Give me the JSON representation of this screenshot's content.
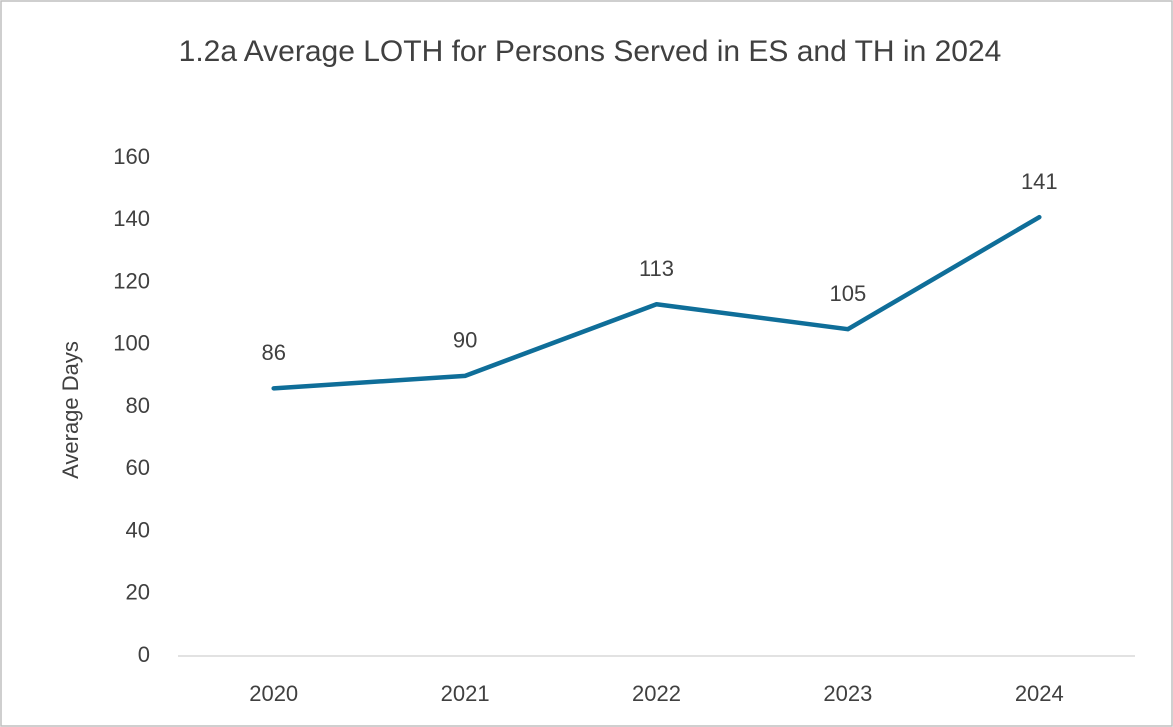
{
  "chart_data": {
    "type": "line",
    "title": "1.2a Average LOTH for Persons Served in ES and TH in 2024",
    "y_label": "Average Days",
    "categories": [
      "2020",
      "2021",
      "2022",
      "2023",
      "2024"
    ],
    "series": [
      {
        "name": "Average Days",
        "color": "#0f6e99",
        "values": [
          86,
          90,
          113,
          105,
          141
        ]
      }
    ],
    "ylim": [
      0,
      160
    ],
    "yticks": [
      0,
      20,
      40,
      60,
      80,
      100,
      120,
      140,
      160
    ],
    "grid": false,
    "data_labels": true
  }
}
